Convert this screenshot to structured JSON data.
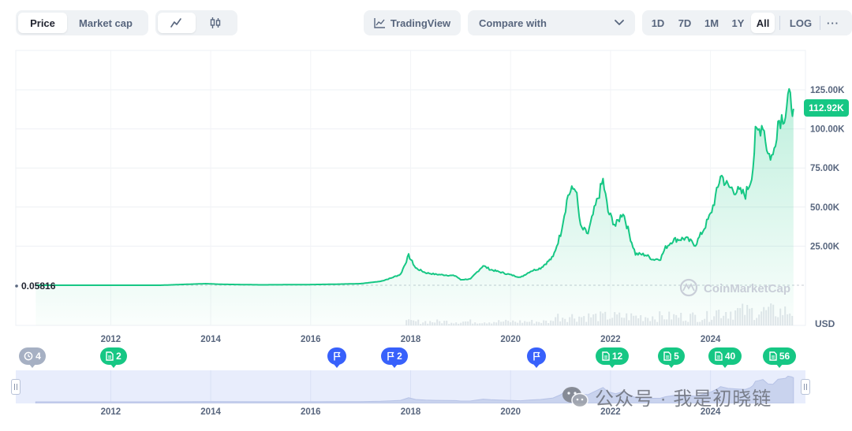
{
  "toolbar": {
    "view_tabs": [
      {
        "label": "Price",
        "active": true
      },
      {
        "label": "Market cap",
        "active": false
      }
    ],
    "chart_style_icons": [
      "line-chart-icon",
      "candlestick-icon"
    ],
    "tradingview_label": "TradingView",
    "compare_label": "Compare with",
    "ranges": [
      {
        "label": "1D",
        "active": false
      },
      {
        "label": "7D",
        "active": false
      },
      {
        "label": "1M",
        "active": false
      },
      {
        "label": "1Y",
        "active": false
      },
      {
        "label": "All",
        "active": true
      }
    ],
    "log_label": "LOG",
    "more_icon": "more-horizontal-icon"
  },
  "chart": {
    "start_price_label": "0.05816",
    "current_price_label": "112.92K",
    "currency_label": "USD",
    "brand_watermark": "CoinMarketCap",
    "colors": {
      "line": "#16c784",
      "badge": "#16c784",
      "navigator": "#e8edfc"
    }
  },
  "chart_data": {
    "type": "area",
    "ylabel": "USD",
    "ylim": [
      0,
      130000
    ],
    "y_ticks": [
      "25.00K",
      "50.00K",
      "75.00K",
      "100.00K",
      "125.00K"
    ],
    "y_tick_values": [
      25000,
      50000,
      75000,
      100000,
      125000
    ],
    "x_ticks": [
      "2012",
      "2014",
      "2016",
      "2018",
      "2020",
      "2022",
      "2024"
    ],
    "x_tick_values": [
      2012,
      2014,
      2016,
      2018,
      2020,
      2022,
      2024
    ],
    "xlim": [
      2010.1,
      2025.9
    ],
    "series": [
      {
        "values": [
          [
            2010.5,
            0.06
          ],
          [
            2011.5,
            5
          ],
          [
            2012,
            5
          ],
          [
            2013,
            13
          ],
          [
            2013.9,
            1000
          ],
          [
            2014.2,
            600
          ],
          [
            2015,
            250
          ],
          [
            2016,
            430
          ],
          [
            2016.5,
            650
          ],
          [
            2017,
            1000
          ],
          [
            2017.4,
            2500
          ],
          [
            2017.6,
            4500
          ],
          [
            2017.8,
            7000
          ],
          [
            2017.96,
            19000
          ],
          [
            2018.1,
            11000
          ],
          [
            2018.3,
            8000
          ],
          [
            2018.5,
            7000
          ],
          [
            2018.9,
            6000
          ],
          [
            2019,
            3500
          ],
          [
            2019.2,
            4000
          ],
          [
            2019.45,
            12500
          ],
          [
            2019.6,
            10000
          ],
          [
            2019.9,
            7500
          ],
          [
            2020.2,
            5000
          ],
          [
            2020.4,
            9000
          ],
          [
            2020.6,
            11000
          ],
          [
            2020.85,
            18000
          ],
          [
            2021.0,
            33000
          ],
          [
            2021.15,
            58000
          ],
          [
            2021.3,
            63000
          ],
          [
            2021.4,
            37000
          ],
          [
            2021.55,
            33000
          ],
          [
            2021.65,
            45000
          ],
          [
            2021.85,
            67000
          ],
          [
            2021.95,
            47000
          ],
          [
            2022.1,
            38000
          ],
          [
            2022.25,
            47000
          ],
          [
            2022.4,
            30000
          ],
          [
            2022.5,
            20000
          ],
          [
            2022.7,
            19500
          ],
          [
            2022.85,
            16500
          ],
          [
            2023.0,
            17000
          ],
          [
            2023.1,
            24000
          ],
          [
            2023.25,
            29000
          ],
          [
            2023.5,
            30000
          ],
          [
            2023.7,
            26000
          ],
          [
            2023.85,
            35000
          ],
          [
            2024.0,
            45000
          ],
          [
            2024.15,
            62000
          ],
          [
            2024.2,
            71000
          ],
          [
            2024.35,
            63000
          ],
          [
            2024.55,
            60000
          ],
          [
            2024.7,
            58000
          ],
          [
            2024.8,
            67000
          ],
          [
            2024.85,
            76000
          ],
          [
            2024.9,
            96000
          ],
          [
            2024.95,
            98000
          ],
          [
            2025.05,
            104000
          ],
          [
            2025.15,
            84000
          ],
          [
            2025.25,
            82000
          ],
          [
            2025.35,
            105000
          ],
          [
            2025.5,
            110000
          ],
          [
            2025.55,
            120000
          ],
          [
            2025.62,
            117000
          ],
          [
            2025.66,
            112920
          ]
        ]
      }
    ]
  },
  "events": [
    {
      "label": "4",
      "icon": "history-icon",
      "style": "gray"
    },
    {
      "label": "2",
      "icon": "document-icon",
      "style": "green"
    },
    {
      "label": "",
      "icon": "flag-icon",
      "style": "blue"
    },
    {
      "label": "2",
      "icon": "flag-icon",
      "style": "blue"
    },
    {
      "label": "",
      "icon": "flag-icon",
      "style": "blue"
    },
    {
      "label": "12",
      "icon": "document-icon",
      "style": "green"
    },
    {
      "label": "5",
      "icon": "document-icon",
      "style": "green"
    },
    {
      "label": "40",
      "icon": "document-icon",
      "style": "green"
    },
    {
      "label": "56",
      "icon": "document-icon",
      "style": "green"
    }
  ],
  "navigator": {
    "x_ticks": [
      "2012",
      "2014",
      "2016",
      "2018",
      "2020",
      "2022",
      "2024"
    ],
    "handle_icon": "drag-handle-icon"
  },
  "watermark": {
    "text": "公众号 · 我是初晓链",
    "icon": "wechat-icon"
  }
}
